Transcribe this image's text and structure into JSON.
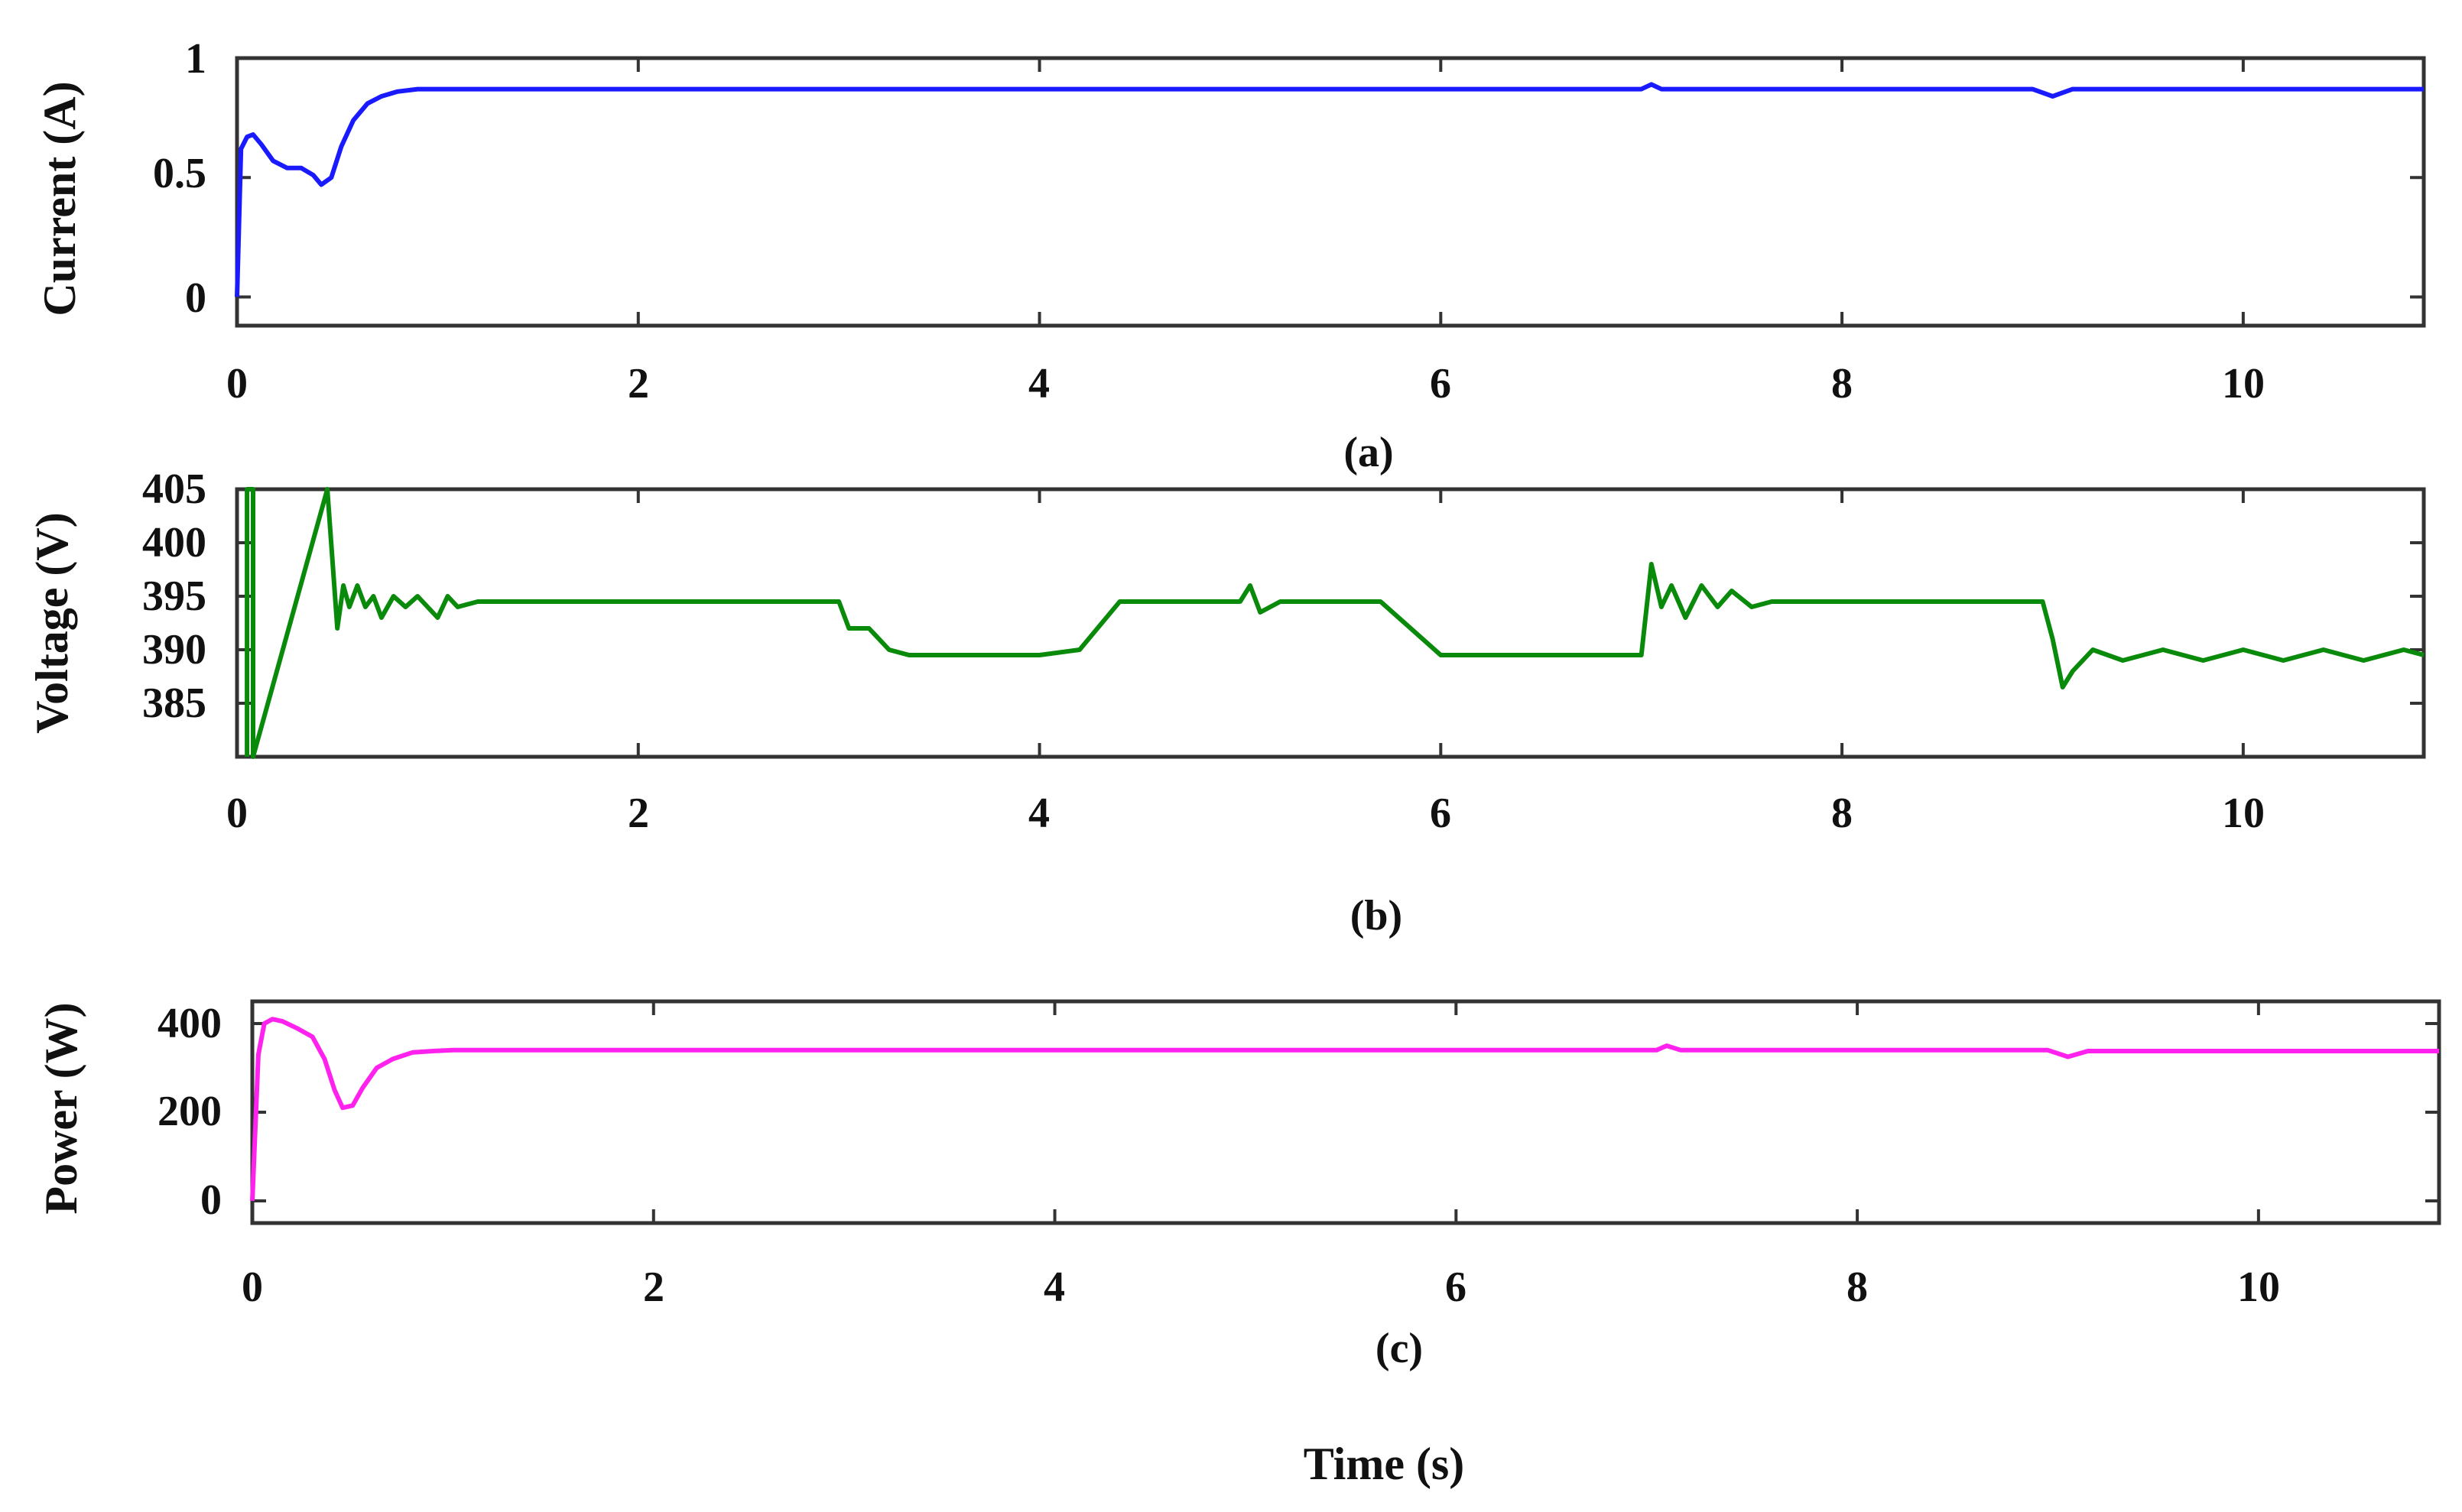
{
  "colors": {
    "current": "#1a1aff",
    "voltage": "#0a8a0a",
    "power": "#ff22ee"
  },
  "x_axis_title": "Time (s)",
  "chart_data": [
    {
      "type": "line",
      "caption": "(a)",
      "ylabel": "Current (A)",
      "xlim": [
        0,
        10.9
      ],
      "ylim": [
        -0.12,
        1.0
      ],
      "xticks": [
        "0",
        "2",
        "4",
        "6",
        "8",
        "10"
      ],
      "yticks": [
        "0",
        "0.5",
        "1"
      ],
      "series": [
        {
          "x": [
            0,
            0.02,
            0.05,
            0.08,
            0.12,
            0.18,
            0.25,
            0.32,
            0.38,
            0.42,
            0.47,
            0.52,
            0.58,
            0.65,
            0.72,
            0.8,
            0.9,
            1.0,
            2.0,
            3.0,
            4.0,
            5.0,
            6.0,
            7.0,
            7.05,
            7.1,
            8.0,
            8.95,
            9.05,
            9.15,
            10.0,
            10.9
          ],
          "y": [
            0.0,
            0.62,
            0.67,
            0.68,
            0.64,
            0.57,
            0.54,
            0.54,
            0.51,
            0.47,
            0.5,
            0.63,
            0.74,
            0.81,
            0.84,
            0.86,
            0.87,
            0.87,
            0.87,
            0.87,
            0.87,
            0.87,
            0.87,
            0.87,
            0.89,
            0.87,
            0.87,
            0.87,
            0.84,
            0.87,
            0.87,
            0.87
          ]
        }
      ]
    },
    {
      "type": "line",
      "caption": "(b)",
      "ylabel": "Voltage (V)",
      "xlim": [
        0,
        10.9
      ],
      "ylim": [
        380,
        405
      ],
      "xticks": [
        "0",
        "2",
        "4",
        "6",
        "8",
        "10"
      ],
      "yticks": [
        "385",
        "390",
        "395",
        "400",
        "405"
      ],
      "series": [
        {
          "x": [
            0.05,
            0.05,
            0.08,
            0.08,
            0.45,
            0.5,
            0.53,
            0.56,
            0.6,
            0.64,
            0.68,
            0.72,
            0.78,
            0.84,
            0.9,
            1.0,
            1.05,
            1.1,
            1.2,
            1.3,
            1.5,
            2.0,
            2.5,
            3.0,
            3.05,
            3.15,
            3.25,
            3.35,
            3.6,
            4.0,
            4.2,
            4.4,
            4.6,
            5.0,
            5.05,
            5.1,
            5.2,
            5.7,
            5.85,
            6.0,
            6.05,
            6.5,
            7.0,
            7.05,
            7.1,
            7.15,
            7.22,
            7.3,
            7.38,
            7.45,
            7.55,
            7.65,
            8.0,
            8.5,
            9.0,
            9.05,
            9.1,
            9.15,
            9.25,
            9.4,
            9.6,
            9.8,
            10.0,
            10.2,
            10.4,
            10.6,
            10.8,
            10.9
          ],
          "y": [
            380,
            405,
            405,
            380,
            405,
            392,
            396,
            394,
            396,
            394,
            395,
            393,
            395,
            394,
            395,
            393,
            395,
            394,
            394.5,
            394.5,
            394.5,
            394.5,
            394.5,
            394.5,
            392,
            392,
            390,
            389.5,
            389.5,
            389.5,
            390,
            394.5,
            394.5,
            394.5,
            396,
            393.5,
            394.5,
            394.5,
            392,
            389.5,
            389.5,
            389.5,
            389.5,
            398,
            394,
            396,
            393,
            396,
            394,
            395.5,
            394,
            394.5,
            394.5,
            394.5,
            394.5,
            391,
            386.5,
            388,
            390,
            389,
            390,
            389,
            390,
            389,
            390,
            389,
            390,
            389.5
          ]
        }
      ]
    },
    {
      "type": "line",
      "caption": "(c)",
      "ylabel": "Power (W)",
      "xlim": [
        0,
        10.9
      ],
      "ylim": [
        -50,
        450
      ],
      "xticks": [
        "0",
        "2",
        "4",
        "6",
        "8",
        "10"
      ],
      "yticks": [
        "0",
        "200",
        "400"
      ],
      "series": [
        {
          "x": [
            0,
            0.03,
            0.06,
            0.1,
            0.15,
            0.22,
            0.3,
            0.36,
            0.41,
            0.45,
            0.5,
            0.55,
            0.62,
            0.7,
            0.8,
            0.9,
            1.0,
            2.0,
            3.0,
            4.0,
            5.0,
            6.0,
            7.0,
            7.05,
            7.12,
            8.0,
            8.95,
            9.05,
            9.15,
            10.0,
            10.9
          ],
          "y": [
            0,
            330,
            400,
            410,
            405,
            390,
            370,
            320,
            250,
            210,
            215,
            255,
            300,
            320,
            335,
            338,
            340,
            340,
            340,
            340,
            340,
            340,
            340,
            350,
            340,
            340,
            340,
            325,
            338,
            338,
            338
          ]
        }
      ]
    }
  ]
}
